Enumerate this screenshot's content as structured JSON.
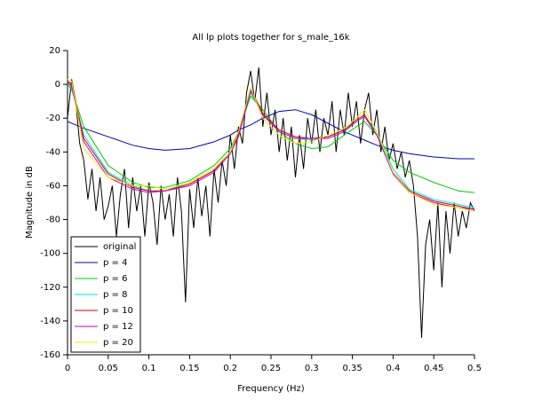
{
  "chart_data": {
    "type": "line",
    "title": "All lp plots together for s_male_16k",
    "x_label": "Frequency (Hz)",
    "y_label": "Magnitude in dB",
    "xlim": [
      0,
      0.5
    ],
    "ylim": [
      -160,
      20
    ],
    "xticks": [
      0,
      0.05,
      0.1,
      0.15,
      0.2,
      0.25,
      0.3,
      0.35,
      0.4,
      0.45,
      0.5
    ],
    "yticks": [
      20,
      0,
      -20,
      -40,
      -60,
      -80,
      -100,
      -120,
      -140,
      -160
    ],
    "legend": "lower_left",
    "series": [
      {
        "name": "original",
        "color": "#000000",
        "x": [
          0,
          0.005,
          0.01,
          0.015,
          0.02,
          0.025,
          0.03,
          0.035,
          0.04,
          0.045,
          0.05,
          0.055,
          0.06,
          0.065,
          0.07,
          0.075,
          0.08,
          0.085,
          0.09,
          0.095,
          0.1,
          0.105,
          0.11,
          0.115,
          0.12,
          0.125,
          0.13,
          0.135,
          0.14,
          0.145,
          0.15,
          0.155,
          0.16,
          0.165,
          0.17,
          0.175,
          0.18,
          0.185,
          0.19,
          0.195,
          0.2,
          0.205,
          0.21,
          0.215,
          0.22,
          0.225,
          0.23,
          0.235,
          0.24,
          0.245,
          0.25,
          0.255,
          0.26,
          0.265,
          0.27,
          0.275,
          0.28,
          0.285,
          0.29,
          0.295,
          0.3,
          0.305,
          0.31,
          0.315,
          0.32,
          0.325,
          0.33,
          0.335,
          0.34,
          0.345,
          0.35,
          0.355,
          0.36,
          0.365,
          0.37,
          0.375,
          0.38,
          0.385,
          0.39,
          0.395,
          0.4,
          0.405,
          0.41,
          0.415,
          0.42,
          0.425,
          0.43,
          0.435,
          0.44,
          0.445,
          0.45,
          0.455,
          0.46,
          0.465,
          0.47,
          0.475,
          0.48,
          0.485,
          0.49,
          0.495,
          0.5
        ],
        "values": [
          -20,
          3,
          -10,
          -35,
          -45,
          -68,
          -50,
          -75,
          -55,
          -80,
          -72,
          -60,
          -90,
          -65,
          -50,
          -85,
          -55,
          -75,
          -60,
          -90,
          -58,
          -70,
          -95,
          -60,
          -80,
          -65,
          -90,
          -55,
          -75,
          -129,
          -62,
          -85,
          -55,
          -78,
          -60,
          -90,
          -50,
          -70,
          -45,
          -60,
          -30,
          -50,
          -25,
          -35,
          -5,
          8,
          -10,
          10,
          -25,
          -5,
          -30,
          -15,
          -40,
          -20,
          -45,
          -25,
          -55,
          -30,
          -50,
          -20,
          -35,
          -15,
          -40,
          -20,
          -30,
          -10,
          -40,
          -15,
          -30,
          -5,
          -25,
          -10,
          -35,
          -15,
          -5,
          -30,
          -15,
          -40,
          -25,
          -45,
          -35,
          -50,
          -40,
          -55,
          -45,
          -60,
          -90,
          -150,
          -95,
          -80,
          -110,
          -70,
          -120,
          -75,
          -100,
          -70,
          -90,
          -75,
          -85,
          -70,
          -75
        ]
      },
      {
        "name": "p = 4",
        "color": "#0000aa",
        "x": [
          0,
          0.005,
          0.02,
          0.05,
          0.08,
          0.1,
          0.12,
          0.15,
          0.18,
          0.2,
          0.21,
          0.225,
          0.24,
          0.26,
          0.28,
          0.3,
          0.32,
          0.34,
          0.355,
          0.365,
          0.38,
          0.4,
          0.42,
          0.45,
          0.48,
          0.5
        ],
        "values": [
          -22,
          -23,
          -26,
          -31,
          -36,
          -38,
          -39,
          -38,
          -34,
          -30,
          -27,
          -24,
          -20,
          -16,
          -15,
          -18,
          -23,
          -28,
          -31,
          -33,
          -36,
          -39,
          -41,
          -43,
          -44,
          -44
        ]
      },
      {
        "name": "p = 6",
        "color": "#00cc00",
        "x": [
          0,
          0.005,
          0.02,
          0.05,
          0.08,
          0.1,
          0.12,
          0.15,
          0.18,
          0.2,
          0.21,
          0.225,
          0.24,
          0.26,
          0.28,
          0.3,
          0.32,
          0.34,
          0.355,
          0.365,
          0.38,
          0.4,
          0.42,
          0.45,
          0.48,
          0.5
        ],
        "values": [
          0,
          -3,
          -25,
          -48,
          -58,
          -61,
          -61,
          -57,
          -48,
          -38,
          -28,
          -7,
          -15,
          -28,
          -35,
          -38,
          -37,
          -30,
          -25,
          -22,
          -30,
          -45,
          -52,
          -58,
          -63,
          -64
        ]
      },
      {
        "name": "p = 8",
        "color": "#00e5e5",
        "x": [
          0,
          0.005,
          0.02,
          0.05,
          0.08,
          0.1,
          0.12,
          0.15,
          0.18,
          0.2,
          0.21,
          0.225,
          0.24,
          0.26,
          0.28,
          0.3,
          0.32,
          0.34,
          0.355,
          0.365,
          0.38,
          0.4,
          0.42,
          0.45,
          0.48,
          0.5
        ],
        "values": [
          2,
          -2,
          -30,
          -52,
          -60,
          -63,
          -63,
          -58,
          -50,
          -40,
          -30,
          -5,
          -18,
          -28,
          -32,
          -33,
          -31,
          -27,
          -22,
          -19,
          -28,
          -50,
          -62,
          -68,
          -71,
          -73
        ]
      },
      {
        "name": "p = 10",
        "color": "#cc0000",
        "x": [
          0,
          0.005,
          0.02,
          0.05,
          0.08,
          0.1,
          0.12,
          0.15,
          0.18,
          0.2,
          0.21,
          0.225,
          0.24,
          0.26,
          0.28,
          0.3,
          0.32,
          0.34,
          0.355,
          0.365,
          0.38,
          0.4,
          0.42,
          0.45,
          0.48,
          0.5
        ],
        "values": [
          2,
          0,
          -32,
          -53,
          -61,
          -63,
          -63,
          -59,
          -51,
          -40,
          -30,
          -3,
          -17,
          -27,
          -31,
          -32,
          -31,
          -27,
          -21,
          -18,
          -30,
          -52,
          -63,
          -69,
          -72,
          -74
        ]
      },
      {
        "name": "p = 12",
        "color": "#cc00cc",
        "x": [
          0,
          0.005,
          0.02,
          0.05,
          0.08,
          0.1,
          0.12,
          0.15,
          0.18,
          0.2,
          0.21,
          0.225,
          0.24,
          0.26,
          0.28,
          0.3,
          0.32,
          0.34,
          0.355,
          0.365,
          0.38,
          0.4,
          0.42,
          0.45,
          0.48,
          0.5
        ],
        "values": [
          1,
          -1,
          -34,
          -55,
          -62,
          -64,
          -63,
          -60,
          -52,
          -41,
          -31,
          -4,
          -18,
          -28,
          -32,
          -32,
          -32,
          -28,
          -22,
          -19,
          -30,
          -53,
          -64,
          -70,
          -73,
          -74
        ]
      },
      {
        "name": "p = 20",
        "color": "#eeee00",
        "x": [
          0,
          0.005,
          0.02,
          0.05,
          0.08,
          0.1,
          0.12,
          0.15,
          0.18,
          0.2,
          0.21,
          0.225,
          0.24,
          0.26,
          0.28,
          0.3,
          0.32,
          0.34,
          0.355,
          0.365,
          0.38,
          0.4,
          0.42,
          0.45,
          0.48,
          0.5
        ],
        "values": [
          3,
          2,
          -38,
          -55,
          -60,
          -60,
          -62,
          -58,
          -50,
          -40,
          -28,
          -2,
          -20,
          -30,
          -35,
          -34,
          -30,
          -26,
          -20,
          -15,
          -28,
          -52,
          -64,
          -71,
          -73,
          -75
        ]
      }
    ]
  }
}
